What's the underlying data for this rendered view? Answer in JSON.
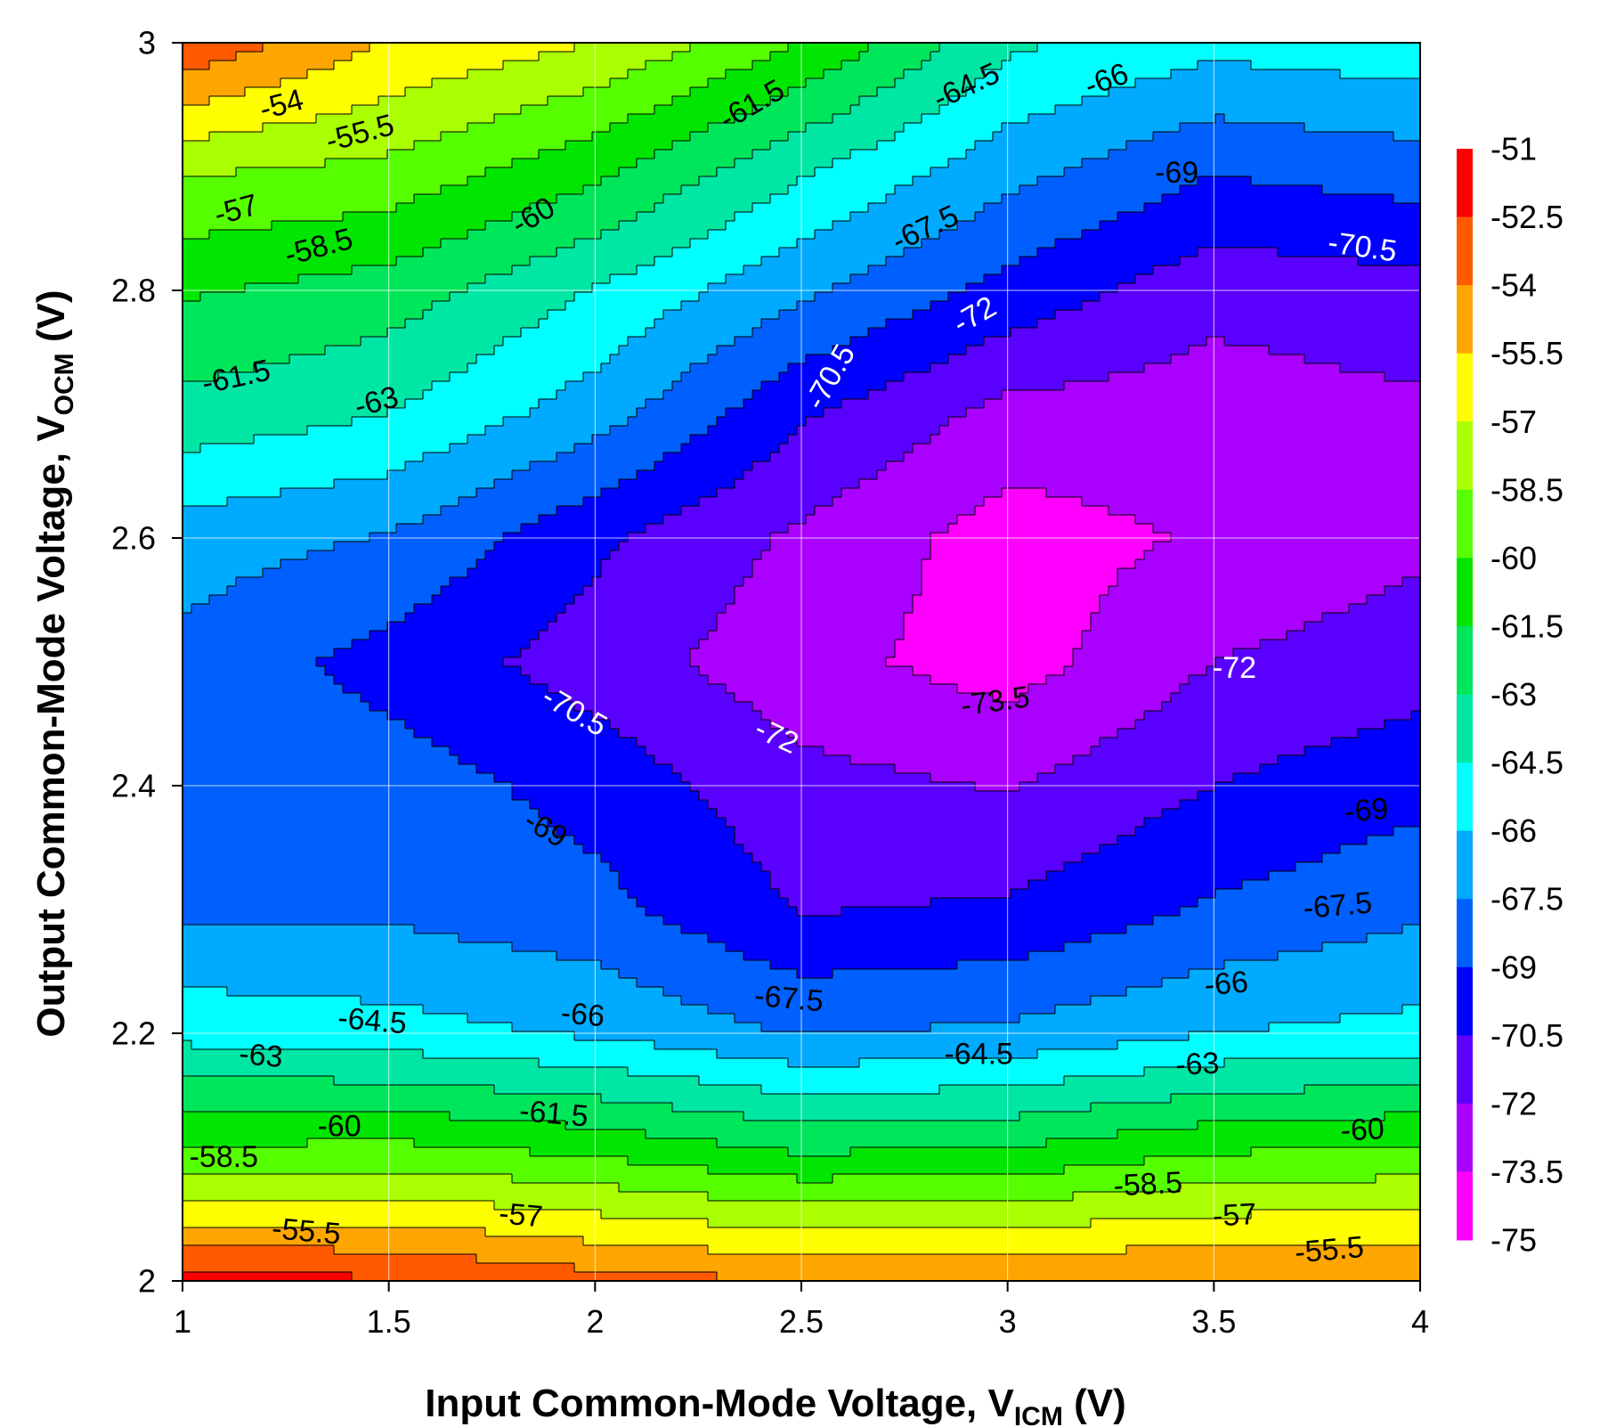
{
  "chart_data": {
    "type": "contour",
    "title": "",
    "xlabel": {
      "text": "Input Common-Mode Voltage, V",
      "sub": "ICM",
      "suffix": " (V)"
    },
    "ylabel": {
      "text": "Output Common-Mode Voltage, V",
      "sub": "OCM",
      "suffix": " (V)"
    },
    "xlim": [
      1,
      4
    ],
    "ylim": [
      2,
      3
    ],
    "x_ticks": [
      "1",
      "1.5",
      "2",
      "2.5",
      "3",
      "3.5",
      "4"
    ],
    "y_ticks": [
      "2",
      "2.2",
      "2.4",
      "2.6",
      "2.8",
      "3"
    ],
    "x_tick_values": [
      1,
      1.5,
      2,
      2.5,
      3,
      3.5,
      4
    ],
    "y_tick_values": [
      2,
      2.2,
      2.4,
      2.6,
      2.8,
      3
    ],
    "grid": true,
    "colorbar": {
      "labels": [
        "-51",
        "-52.5",
        "-54",
        "-55.5",
        "-57",
        "-58.5",
        "-60",
        "-61.5",
        "-63",
        "-64.5",
        "-66",
        "-67.5",
        "-69",
        "-70.5",
        "-72",
        "-73.5",
        "-75"
      ],
      "colors": [
        "#ff0000",
        "#ff5a00",
        "#ffa500",
        "#ffff00",
        "#aaff00",
        "#55ff00",
        "#00e600",
        "#00e65a",
        "#00e6a5",
        "#00ffff",
        "#00aaff",
        "#0060ff",
        "#0000ff",
        "#5a00ff",
        "#aa00ff",
        "#ff00ff"
      ]
    },
    "x_grid": [
      1,
      1.5,
      2,
      2.5,
      3,
      3.5,
      4
    ],
    "y_grid": [
      2,
      2.1,
      2.2,
      2.3,
      2.4,
      2.5,
      2.6,
      2.7,
      2.8,
      2.9,
      3
    ],
    "z": [
      [
        -52.0,
        -52.3,
        -53.4,
        -54.0,
        -54.0,
        -53.8,
        -53.8
      ],
      [
        -59.5,
        -59.2,
        -60.0,
        -61.3,
        -61.0,
        -59.8,
        -59.4
      ],
      [
        -65.0,
        -65.4,
        -66.2,
        -67.6,
        -67.2,
        -66.0,
        -65.5
      ],
      [
        -67.8,
        -67.8,
        -68.5,
        -70.6,
        -70.3,
        -68.8,
        -67.8
      ],
      [
        -67.8,
        -68.2,
        -69.6,
        -71.5,
        -72.1,
        -70.5,
        -69.5
      ],
      [
        -67.9,
        -69.6,
        -71.2,
        -73.0,
        -74.2,
        -72.0,
        -71.2
      ],
      [
        -66.8,
        -67.6,
        -70.2,
        -72.3,
        -74.2,
        -73.3,
        -72.3
      ],
      [
        -63.5,
        -64.5,
        -66.8,
        -70.3,
        -72.5,
        -72.8,
        -72.3
      ],
      [
        -61.3,
        -62.2,
        -64.6,
        -67.2,
        -69.5,
        -71.5,
        -71.0
      ],
      [
        -58.2,
        -58.8,
        -61.0,
        -64.2,
        -66.9,
        -68.8,
        -68.2
      ],
      [
        -52.7,
        -55.6,
        -57.0,
        -60.0,
        -64.2,
        -65.5,
        -65.0
      ]
    ],
    "contour_labels": [
      {
        "text": "-54",
        "x": 1.24,
        "y": 2.95,
        "angle": -15
      },
      {
        "text": "-55.5",
        "x": 1.43,
        "y": 2.927,
        "angle": -15
      },
      {
        "text": "-57",
        "x": 1.13,
        "y": 2.865,
        "angle": -15
      },
      {
        "text": "-58.5",
        "x": 1.33,
        "y": 2.835,
        "angle": -15
      },
      {
        "text": "-60",
        "x": 1.85,
        "y": 2.86,
        "angle": -30
      },
      {
        "text": "-61.5",
        "x": 2.38,
        "y": 2.95,
        "angle": -30
      },
      {
        "text": "-61.5",
        "x": 1.13,
        "y": 2.73,
        "angle": -12
      },
      {
        "text": "-63",
        "x": 1.47,
        "y": 2.71,
        "angle": -15
      },
      {
        "text": "-64.5",
        "x": 2.9,
        "y": 2.965,
        "angle": -25
      },
      {
        "text": "-66",
        "x": 3.24,
        "y": 2.97,
        "angle": -20
      },
      {
        "text": "-67.5",
        "x": 2.8,
        "y": 2.85,
        "angle": -25
      },
      {
        "text": "-69",
        "x": 3.41,
        "y": 2.895,
        "angle": 0
      },
      {
        "text": "-70.5",
        "x": 3.86,
        "y": 2.835,
        "angle": 8
      },
      {
        "text": "-72",
        "x": 2.92,
        "y": 2.78,
        "angle": -30
      },
      {
        "text": "-70.5",
        "x": 2.57,
        "y": 2.73,
        "angle": -60
      },
      {
        "text": "-70.5",
        "x": 1.95,
        "y": 2.46,
        "angle": 30
      },
      {
        "text": "-72",
        "x": 2.44,
        "y": 2.44,
        "angle": 25
      },
      {
        "text": "-73.5",
        "x": 2.97,
        "y": 2.468,
        "angle": -8
      },
      {
        "text": "-72",
        "x": 3.55,
        "y": 2.495,
        "angle": 0
      },
      {
        "text": "-69",
        "x": 1.88,
        "y": 2.365,
        "angle": 30
      },
      {
        "text": "-69",
        "x": 3.87,
        "y": 2.38,
        "angle": -5
      },
      {
        "text": "-67.5",
        "x": 3.8,
        "y": 2.303,
        "angle": -5
      },
      {
        "text": "-67.5",
        "x": 2.47,
        "y": 2.228,
        "angle": 5
      },
      {
        "text": "-66",
        "x": 1.97,
        "y": 2.215,
        "angle": 5
      },
      {
        "text": "-66",
        "x": 3.53,
        "y": 2.24,
        "angle": -5
      },
      {
        "text": "-64.5",
        "x": 1.46,
        "y": 2.21,
        "angle": 5
      },
      {
        "text": "-64.5",
        "x": 2.93,
        "y": 2.183,
        "angle": 0
      },
      {
        "text": "-63",
        "x": 1.19,
        "y": 2.182,
        "angle": 5
      },
      {
        "text": "-63",
        "x": 3.46,
        "y": 2.175,
        "angle": -3
      },
      {
        "text": "-61.5",
        "x": 1.9,
        "y": 2.135,
        "angle": 5
      },
      {
        "text": "-60",
        "x": 1.38,
        "y": 2.125,
        "angle": 0
      },
      {
        "text": "-60",
        "x": 3.86,
        "y": 2.122,
        "angle": -3
      },
      {
        "text": "-58.5",
        "x": 1.1,
        "y": 2.1,
        "angle": 0
      },
      {
        "text": "-58.5",
        "x": 3.34,
        "y": 2.078,
        "angle": -3
      },
      {
        "text": "-57",
        "x": 1.82,
        "y": 2.053,
        "angle": 5
      },
      {
        "text": "-57",
        "x": 3.55,
        "y": 2.053,
        "angle": -3
      },
      {
        "text": "-55.5",
        "x": 1.3,
        "y": 2.04,
        "angle": 5
      },
      {
        "text": "-55.5",
        "x": 3.78,
        "y": 2.025,
        "angle": -5
      }
    ]
  }
}
